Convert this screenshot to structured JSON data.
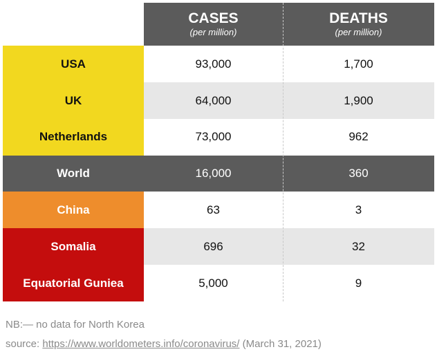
{
  "chart_data": {
    "type": "table",
    "columns": [
      {
        "title": "CASES",
        "subtitle": "(per million)"
      },
      {
        "title": "DEATHS",
        "subtitle": "(per million)"
      }
    ],
    "rows": [
      {
        "label": "USA",
        "cases": "93,000",
        "deaths": "1,700",
        "label_bg": "#f2d81f",
        "label_color": "#111111",
        "data_bg": "#ffffff",
        "data_color": "#111111"
      },
      {
        "label": "UK",
        "cases": "64,000",
        "deaths": "1,900",
        "label_bg": "#f2d81f",
        "label_color": "#111111",
        "data_bg": "#e7e7e7",
        "data_color": "#111111"
      },
      {
        "label": "Netherlands",
        "cases": "73,000",
        "deaths": "962",
        "label_bg": "#f2d81f",
        "label_color": "#111111",
        "data_bg": "#ffffff",
        "data_color": "#111111"
      },
      {
        "label": "World",
        "cases": "16,000",
        "deaths": "360",
        "label_bg": "#5b5b5b",
        "label_color": "#ffffff",
        "data_bg": "#5b5b5b",
        "data_color": "#ffffff"
      },
      {
        "label": "China",
        "cases": "63",
        "deaths": "3",
        "label_bg": "#ee8d2c",
        "label_color": "#ffffff",
        "data_bg": "#ffffff",
        "data_color": "#111111"
      },
      {
        "label": "Somalia",
        "cases": "696",
        "deaths": "32",
        "label_bg": "#c40d0d",
        "label_color": "#ffffff",
        "data_bg": "#e7e7e7",
        "data_color": "#111111"
      },
      {
        "label": "Equatorial Guniea",
        "cases": "5,000",
        "deaths": "9",
        "label_bg": "#c40d0d",
        "label_color": "#ffffff",
        "data_bg": "#ffffff",
        "data_color": "#111111"
      }
    ]
  },
  "notes": {
    "nb": "NB:— no data for North Korea",
    "source_prefix": "source: ",
    "source_link": "https://www.worldometers.info/coronavirus/",
    "source_suffix": " (March 31, 2021)"
  },
  "colors": {
    "header_bg": "#5b5b5b",
    "header_text": "#ffffff"
  }
}
